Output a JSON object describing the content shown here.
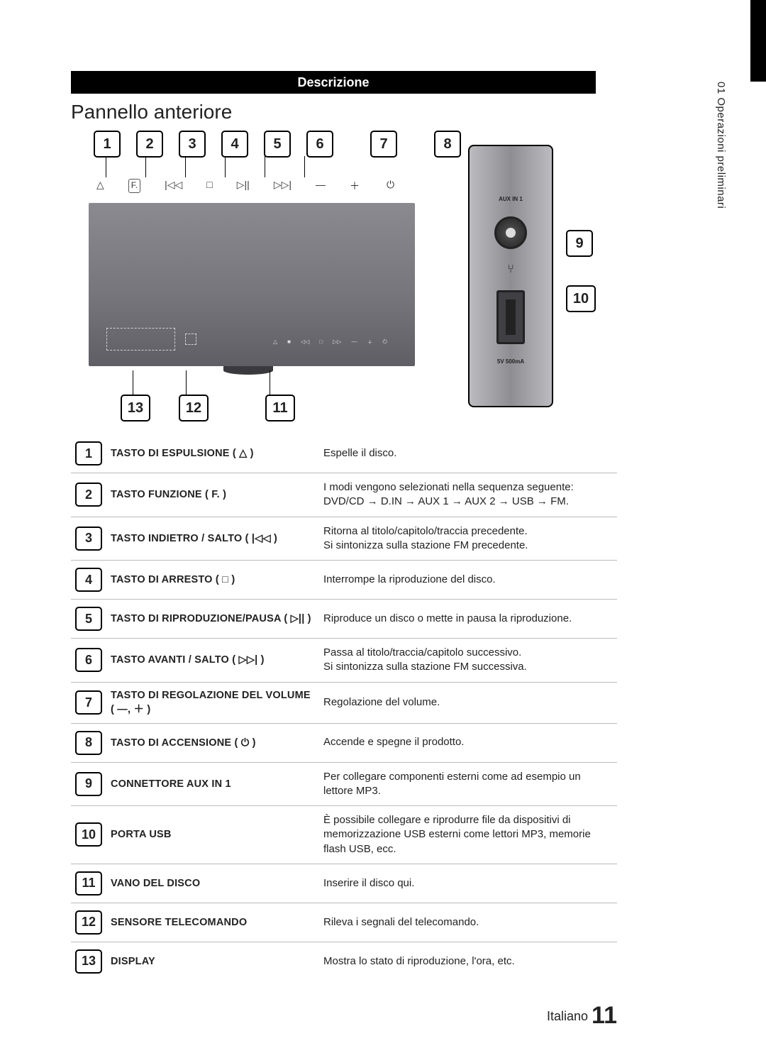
{
  "side": {
    "label": "01  Operazioni preliminari"
  },
  "header": {
    "section": "Descrizione",
    "subtitle": "Pannello anteriore"
  },
  "panel": {
    "aux_label": "AUX IN 1",
    "power_label": "5V 500mA"
  },
  "callouts_top": [
    "1",
    "2",
    "3",
    "4",
    "5",
    "6",
    "7",
    "8"
  ],
  "callouts_right": [
    "9",
    "10"
  ],
  "callouts_bottom": [
    "13",
    "12",
    "11"
  ],
  "icon_glyphs": {
    "eject": "△",
    "func": "F.",
    "prev": "|◁◁",
    "stop": "□",
    "play": "▷||",
    "next": "▷▷|",
    "vol_dn": "—",
    "vol_up": "＋",
    "power": "⏻"
  },
  "rows": [
    {
      "n": "1",
      "name": "TASTO DI ESPULSIONE ( △ )",
      "text": "Espelle il disco."
    },
    {
      "n": "2",
      "name": "TASTO FUNZIONE  ( F. )",
      "text": "I modi vengono selezionati nella sequenza seguente:\nDVD/CD → D.IN → AUX 1 → AUX 2 → USB → FM."
    },
    {
      "n": "3",
      "name": "TASTO INDIETRO / SALTO ( |◁◁ )",
      "text": "Ritorna al titolo/capitolo/traccia precedente.\nSi sintonizza sulla stazione FM precedente."
    },
    {
      "n": "4",
      "name": "TASTO DI ARRESTO ( □ )",
      "text": "Interrompe la riproduzione del disco."
    },
    {
      "n": "5",
      "name": "TASTO DI RIPRODUZIONE/PAUSA ( ▷|| )",
      "text": "Riproduce un disco o mette in pausa la riproduzione."
    },
    {
      "n": "6",
      "name": "TASTO AVANTI / SALTO ( ▷▷| )",
      "text": "Passa al titolo/traccia/capitolo successivo.\nSi sintonizza sulla stazione FM successiva."
    },
    {
      "n": "7",
      "name": "TASTO DI REGOLAZIONE DEL VOLUME ( —, ＋ )",
      "text": "Regolazione del volume."
    },
    {
      "n": "8",
      "name": "TASTO DI ACCENSIONE ( ⏻ )",
      "text": "Accende e spegne il prodotto."
    },
    {
      "n": "9",
      "name": "CONNETTORE AUX IN 1",
      "text": "Per collegare componenti esterni come ad esempio un lettore MP3."
    },
    {
      "n": "10",
      "name": "PORTA USB",
      "text": "È possibile collegare e riprodurre file da dispositivi di memorizzazione USB esterni come lettori MP3, memorie flash USB, ecc."
    },
    {
      "n": "11",
      "name": "VANO DEL DISCO",
      "text": "Inserire il disco qui."
    },
    {
      "n": "12",
      "name": "SENSORE TELECOMANDO",
      "text": "Rileva i segnali del telecomando."
    },
    {
      "n": "13",
      "name": "DISPLAY",
      "text": "Mostra lo stato di riproduzione, l'ora, etc."
    }
  ],
  "footer": {
    "lang": "Italiano",
    "page": "11"
  }
}
